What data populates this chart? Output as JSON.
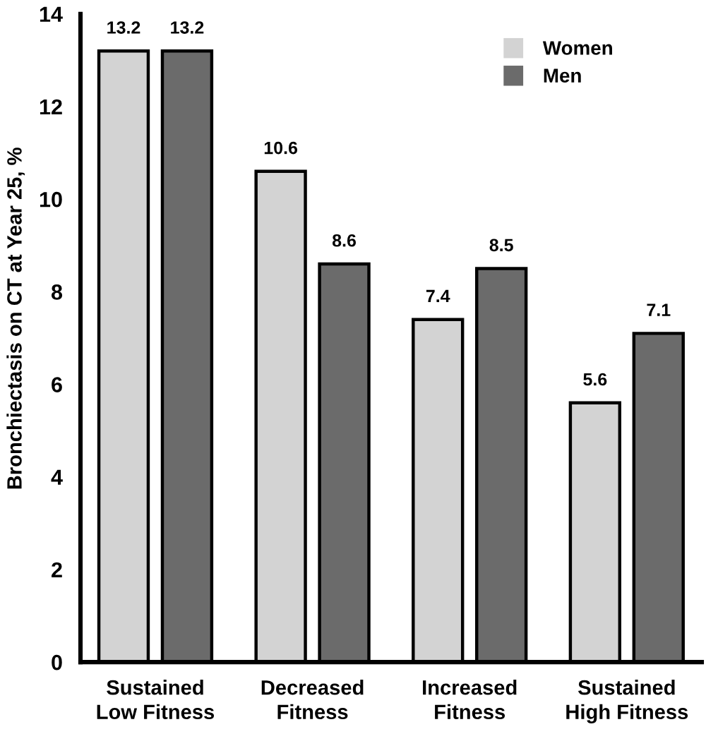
{
  "chart_data": {
    "type": "bar",
    "ylabel": "Bronchiectasis on CT at Year 25, %",
    "categories": [
      "Sustained\nLow Fitness",
      "Decreased\nFitness",
      "Increased\nFitness",
      "Sustained\nHigh Fitness"
    ],
    "series": [
      {
        "name": "Women",
        "color": "#d3d3d3",
        "values": [
          13.2,
          10.6,
          7.4,
          5.6
        ]
      },
      {
        "name": "Men",
        "color": "#6b6b6b",
        "values": [
          13.2,
          8.6,
          8.5,
          7.1
        ]
      }
    ],
    "ylim": [
      0,
      14
    ],
    "yticks": [
      0,
      2,
      4,
      6,
      8,
      10,
      12,
      14
    ],
    "data_labels": true,
    "grid": false,
    "legend": "top right"
  }
}
